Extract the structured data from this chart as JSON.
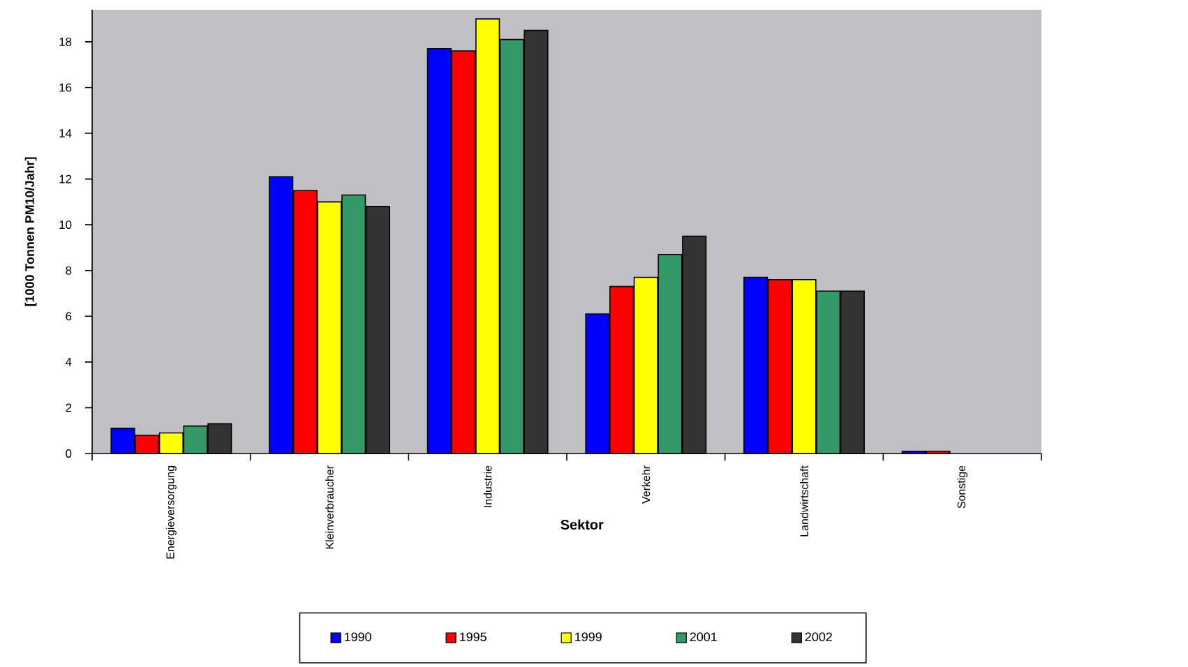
{
  "chart_data": {
    "type": "bar",
    "xlabel": "Sektor",
    "ylabel": "[1000 Tonnen PM10/Jahr]",
    "categories": [
      "Energieversorgung",
      "Kleinverbraucher",
      "Industrie",
      "Verkehr",
      "Landwirtschaft",
      "Sonstige"
    ],
    "series": [
      {
        "name": "1990",
        "color": "#0000ff",
        "values": [
          1.1,
          12.1,
          17.7,
          6.1,
          7.7,
          0.1
        ]
      },
      {
        "name": "1995",
        "color": "#ff0000",
        "values": [
          0.8,
          11.5,
          17.6,
          7.3,
          7.6,
          0.1
        ]
      },
      {
        "name": "1999",
        "color": "#ffff00",
        "values": [
          0.9,
          11.0,
          19.0,
          7.7,
          7.6,
          null
        ]
      },
      {
        "name": "2001",
        "color": "#339966",
        "values": [
          1.2,
          11.3,
          18.1,
          8.7,
          7.1,
          null
        ]
      },
      {
        "name": "2002",
        "color": "#333333",
        "values": [
          1.3,
          10.8,
          18.5,
          9.5,
          7.1,
          null
        ]
      }
    ],
    "ylim": [
      0,
      19.4
    ],
    "yticks": [
      0,
      2,
      4,
      6,
      8,
      10,
      12,
      14,
      16,
      18
    ],
    "legend": "bottom"
  }
}
